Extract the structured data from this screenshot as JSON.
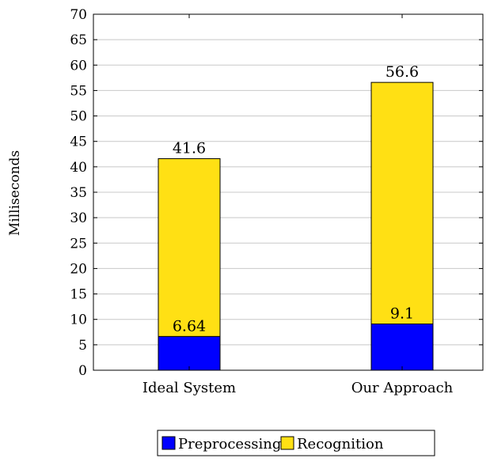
{
  "chart_data": {
    "type": "bar",
    "stacked": true,
    "categories": [
      "Ideal System",
      "Our Approach"
    ],
    "series": [
      {
        "name": "Preprocessing",
        "values": [
          6.64,
          9.1
        ],
        "color": "#0000ff"
      },
      {
        "name": "Recognition",
        "values": [
          34.96,
          47.5
        ],
        "color": "#ffe014"
      }
    ],
    "data_labels": [
      {
        "category": "Ideal System",
        "labels": [
          "6.64",
          "41.6"
        ]
      },
      {
        "category": "Our Approach",
        "labels": [
          "9.1",
          "56.6"
        ]
      }
    ],
    "xlabel": "",
    "ylabel": "Milliseconds",
    "ylim": [
      0,
      70
    ],
    "yticks": [
      0,
      5,
      10,
      15,
      20,
      25,
      30,
      35,
      40,
      45,
      50,
      55,
      60,
      65,
      70
    ],
    "grid": true,
    "legend_position": "bottom"
  }
}
